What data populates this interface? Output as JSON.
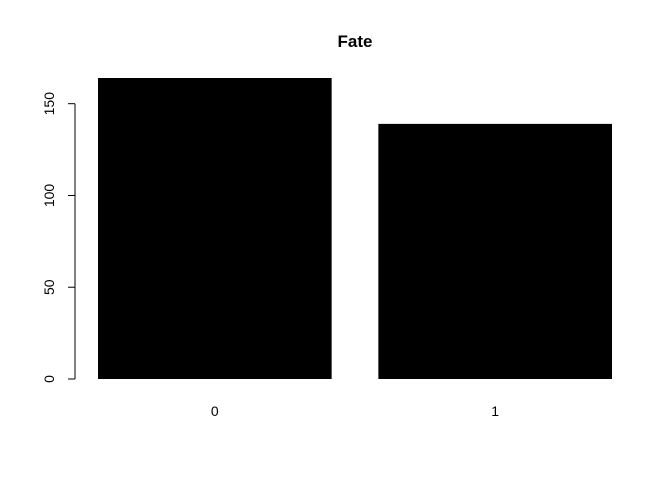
{
  "chart_data": {
    "type": "bar",
    "title": "Fate",
    "xlabel": "",
    "ylabel": "",
    "categories": [
      "0",
      "1"
    ],
    "values": [
      164,
      139
    ],
    "ylim": [
      0,
      164
    ],
    "yticks": [
      0,
      50,
      100,
      150
    ],
    "bar_color": "#000000",
    "grid": false,
    "legend": "none"
  }
}
